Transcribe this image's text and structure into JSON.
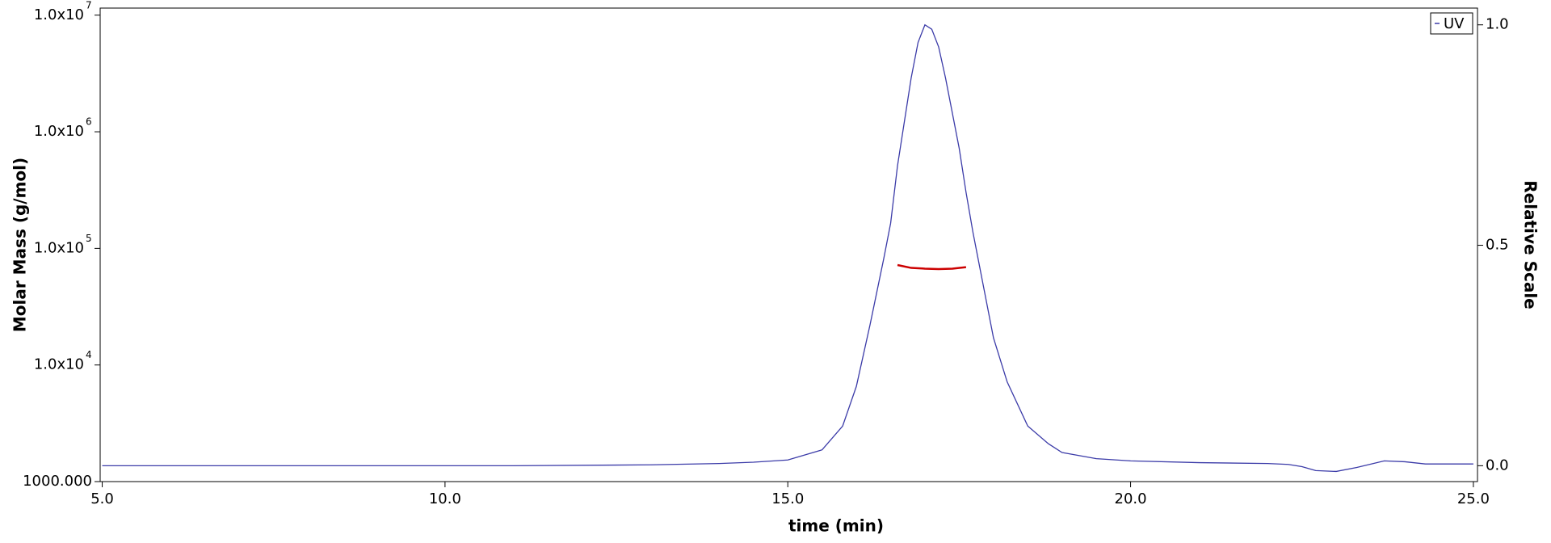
{
  "chart_data": {
    "type": "line",
    "xlabel": "time (min)",
    "ylabel": "Molar Mass (g/mol)",
    "y2label": "Relative Scale",
    "xlim": [
      4.97,
      25.06
    ],
    "xticks": [
      {
        "value": 5,
        "label": "5.0"
      },
      {
        "value": 10,
        "label": "10.0"
      },
      {
        "value": 15,
        "label": "15.0"
      },
      {
        "value": 20,
        "label": "20.0"
      },
      {
        "value": 25,
        "label": "25.0"
      }
    ],
    "ylim": [
      1000,
      11500000
    ],
    "ylog": true,
    "yticks": [
      {
        "value": 1000,
        "label": "1000.000"
      },
      {
        "value": 10000,
        "label": "1.0x10",
        "sup": "4"
      },
      {
        "value": 100000,
        "label": "1.0x10",
        "sup": "5"
      },
      {
        "value": 1000000,
        "label": "1.0x10",
        "sup": "6"
      },
      {
        "value": 10000000,
        "label": "1.0x10",
        "sup": "7"
      }
    ],
    "y2lim": [
      -0.036,
      1.038
    ],
    "y2ticks": [
      {
        "value": 0,
        "label": "0.0"
      },
      {
        "value": 0.5,
        "label": "0.5"
      },
      {
        "value": 1,
        "label": "1.0"
      }
    ],
    "legend": "upper right",
    "series": [
      {
        "name": "UV",
        "color": "#3b3ba8",
        "axis": "y2",
        "x": [
          5,
          8,
          11,
          13,
          14,
          14.5,
          15,
          15.5,
          15.8,
          16,
          16.2,
          16.4,
          16.5,
          16.6,
          16.8,
          16.9,
          17,
          17.1,
          17.2,
          17.3,
          17.5,
          17.6,
          17.7,
          17.8,
          18,
          18.2,
          18.5,
          18.8,
          19,
          19.5,
          20,
          21,
          22,
          22.3,
          22.5,
          22.7,
          23,
          23.3,
          23.7,
          24,
          24.3,
          25
        ],
        "values": [
          0,
          0,
          0,
          0.002,
          0.005,
          0.008,
          0.013,
          0.036,
          0.09,
          0.18,
          0.32,
          0.47,
          0.55,
          0.68,
          0.88,
          0.96,
          1.0,
          0.99,
          0.95,
          0.88,
          0.72,
          0.62,
          0.53,
          0.45,
          0.29,
          0.19,
          0.09,
          0.05,
          0.03,
          0.016,
          0.011,
          0.007,
          0.005,
          0.003,
          -0.002,
          -0.011,
          -0.013,
          -0.004,
          0.011,
          0.009,
          0.004,
          0.004
        ]
      },
      {
        "color": "#cc0000",
        "axis": "y",
        "x": [
          16.6,
          16.8,
          17.0,
          17.2,
          17.4,
          17.6
        ],
        "values": [
          72000,
          68000,
          67000,
          66500,
          67000,
          69000
        ]
      }
    ]
  }
}
